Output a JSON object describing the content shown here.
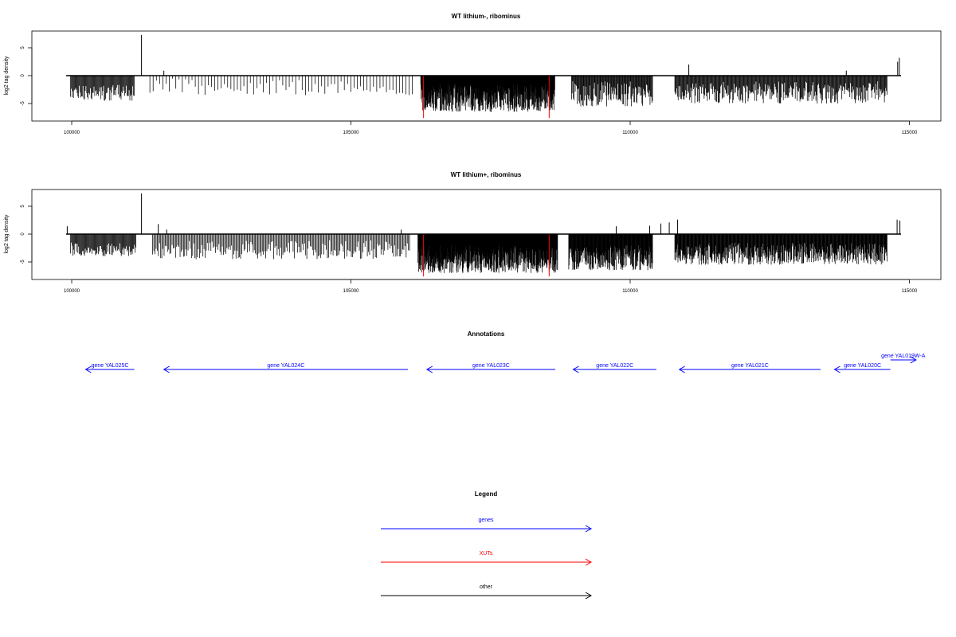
{
  "chart_data": [
    {
      "type": "bar",
      "title": "WT lithium-, ribominus",
      "ylabel": "log2 tag density",
      "xlim": [
        99500,
        115500
      ],
      "ylim": [
        -8,
        8
      ],
      "x_ticks": [
        100000,
        105000,
        110000,
        115000
      ],
      "y_ticks": [
        5,
        0,
        -5
      ],
      "baseline": [
        99900,
        114850
      ],
      "spikes": [
        {
          "x": 101250,
          "y": 7.3
        },
        {
          "x": 101650,
          "y": 0.9
        },
        {
          "x": 111050,
          "y": 2.0
        },
        {
          "x": 113870,
          "y": 0.9
        },
        {
          "x": 114820,
          "y": 3.2
        },
        {
          "x": 114790,
          "y": 2.5
        }
      ],
      "segments": [
        {
          "from": 99980,
          "to": 101120,
          "min": 1.5,
          "max": 4.5,
          "density": 11
        },
        {
          "from": 101400,
          "to": 106100,
          "min": 0.5,
          "max": 3.5,
          "density": 2.5
        },
        {
          "from": 106250,
          "to": 108650,
          "min": 1.5,
          "max": 6.5,
          "density": 28
        },
        {
          "from": 108950,
          "to": 110400,
          "min": 1.0,
          "max": 5.5,
          "density": 13
        },
        {
          "from": 110800,
          "to": 114600,
          "min": 1.0,
          "max": 5.0,
          "density": 12
        }
      ],
      "highlights": [
        {
          "x": 106300,
          "y": -7.6,
          "color": "#ff0000"
        },
        {
          "x": 108550,
          "y": -7.6,
          "color": "#ff0000"
        }
      ]
    },
    {
      "type": "bar",
      "title": "WT lithium+, ribominus",
      "ylabel": "log2 tag density",
      "xlim": [
        99500,
        115500
      ],
      "ylim": [
        -8,
        8
      ],
      "x_ticks": [
        100000,
        105000,
        110000,
        115000
      ],
      "y_ticks": [
        5,
        0,
        -5
      ],
      "baseline": [
        99900,
        114850
      ],
      "spikes": [
        {
          "x": 99920,
          "y": 1.4
        },
        {
          "x": 101250,
          "y": 7.3
        },
        {
          "x": 101550,
          "y": 1.8
        },
        {
          "x": 101700,
          "y": 0.8
        },
        {
          "x": 105900,
          "y": 0.8
        },
        {
          "x": 109750,
          "y": 1.4
        },
        {
          "x": 110350,
          "y": 1.5
        },
        {
          "x": 110550,
          "y": 1.9
        },
        {
          "x": 110700,
          "y": 2.1
        },
        {
          "x": 110850,
          "y": 2.6
        },
        {
          "x": 114780,
          "y": 2.6
        },
        {
          "x": 114830,
          "y": 2.4
        }
      ],
      "segments": [
        {
          "from": 99980,
          "to": 101150,
          "min": 1.5,
          "max": 4.0,
          "density": 11
        },
        {
          "from": 101450,
          "to": 106050,
          "min": 1.0,
          "max": 4.5,
          "density": 7
        },
        {
          "from": 106200,
          "to": 108700,
          "min": 2.0,
          "max": 7.0,
          "density": 30
        },
        {
          "from": 108900,
          "to": 110400,
          "min": 2.0,
          "max": 6.5,
          "density": 22
        },
        {
          "from": 110800,
          "to": 114600,
          "min": 1.5,
          "max": 5.5,
          "density": 18
        }
      ],
      "highlights": [
        {
          "x": 106300,
          "y": -7.6,
          "color": "#ff0000"
        },
        {
          "x": 108550,
          "y": -7.6,
          "color": "#ff0000"
        }
      ]
    }
  ],
  "annotations": {
    "title": "Annotations",
    "genes": [
      {
        "label": "gene YAL025C",
        "start": 100250,
        "end": 101120,
        "dir": "left",
        "row": 0,
        "color": "#0000ff"
      },
      {
        "label": "gene YAL024C",
        "start": 101650,
        "end": 106020,
        "dir": "left",
        "row": 0,
        "color": "#0000ff"
      },
      {
        "label": "gene YAL023C",
        "start": 106360,
        "end": 108660,
        "dir": "left",
        "row": 0,
        "color": "#0000ff"
      },
      {
        "label": "gene YAL022C",
        "start": 108980,
        "end": 110470,
        "dir": "left",
        "row": 0,
        "color": "#0000ff"
      },
      {
        "label": "gene YAL021C",
        "start": 110880,
        "end": 113410,
        "dir": "left",
        "row": 0,
        "color": "#0000ff"
      },
      {
        "label": "gene YAL020C",
        "start": 113660,
        "end": 114660,
        "dir": "left",
        "row": 0,
        "color": "#0000ff"
      },
      {
        "label": "gene YAL019W-A",
        "start": 114660,
        "end": 115120,
        "dir": "right",
        "row": 1,
        "color": "#0000ff"
      }
    ]
  },
  "legend": {
    "title": "Legend",
    "items": [
      {
        "label": "genes",
        "color": "#0000ff"
      },
      {
        "label": "XUTs",
        "color": "#ff0000"
      },
      {
        "label": "other",
        "color": "#000000"
      }
    ]
  }
}
